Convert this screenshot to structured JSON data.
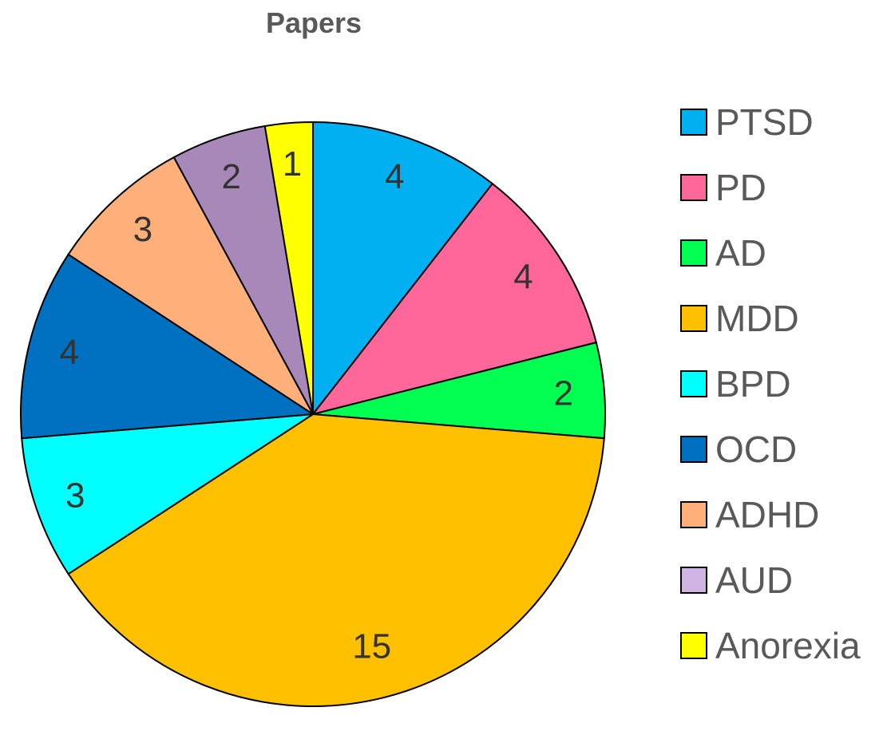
{
  "chart_data": {
    "type": "pie",
    "title": "Papers",
    "categories": [
      "PTSD",
      "PD",
      "AD",
      "MDD",
      "BPD",
      "OCD",
      "ADHD",
      "AUD",
      "Anorexia"
    ],
    "values": [
      4,
      4,
      2,
      15,
      3,
      4,
      3,
      2,
      1
    ],
    "slice_colors": [
      "#00B0F0",
      "#FF6699",
      "#00FF50",
      "#FFC000",
      "#00FFFF",
      "#0070C0",
      "#FFAF7A",
      "#A888B8",
      "#FFFF00"
    ],
    "legend_colors": [
      "#00B0F0",
      "#FF6699",
      "#00FF50",
      "#FFC000",
      "#00FFFF",
      "#0070C0",
      "#FFAF7A",
      "#D0B4E4",
      "#FFFF00"
    ],
    "slice_labels": [
      "4",
      "4",
      "2",
      "15",
      "3",
      "4",
      "3",
      "2",
      "1"
    ],
    "start_angle": "12 o'clock",
    "direction": "clockwise",
    "legend_placement": "right"
  }
}
